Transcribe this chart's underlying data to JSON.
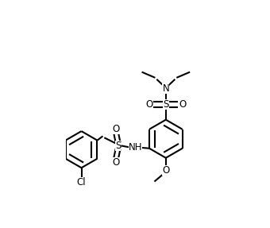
{
  "background_color": "#ffffff",
  "line_color": "#000000",
  "line_width": 1.5,
  "font_size": 8.5,
  "xlim": [
    -2.0,
    1.8
  ],
  "ylim": [
    -2.2,
    2.4
  ],
  "figsize": [
    3.4,
    2.87
  ],
  "dpi": 100
}
